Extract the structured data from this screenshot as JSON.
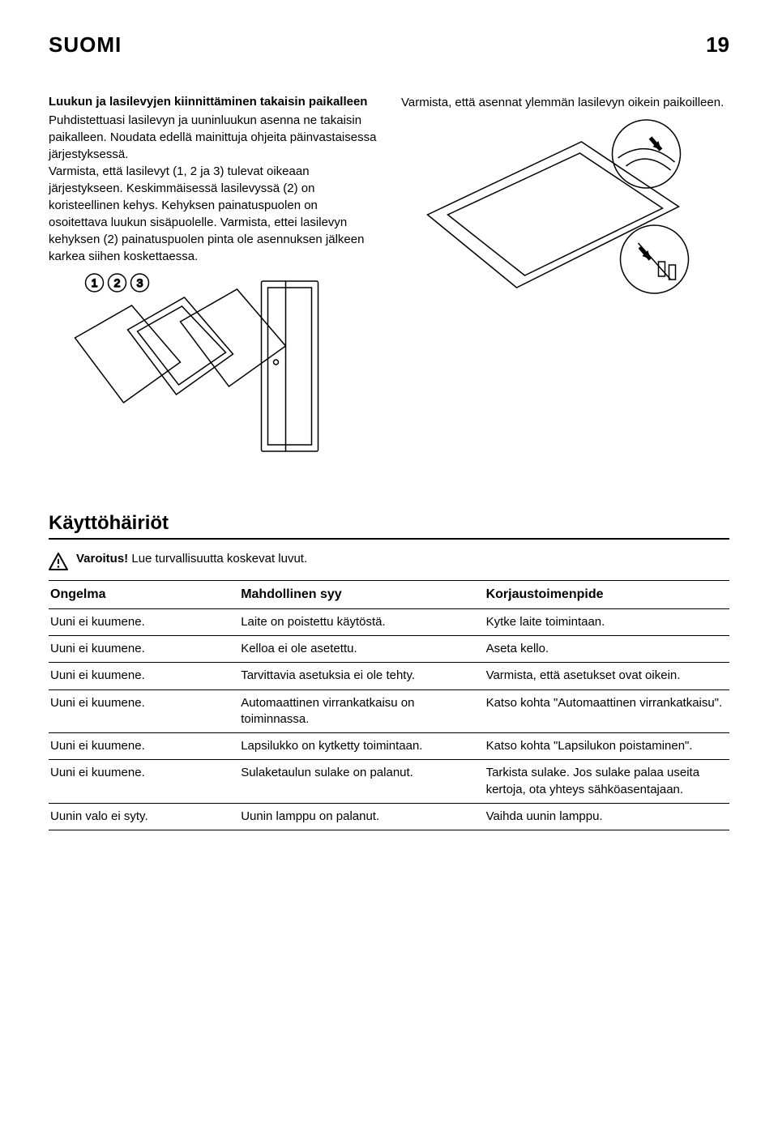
{
  "header": {
    "language": "SUOMI",
    "page_number": "19"
  },
  "left_column": {
    "subtitle": "Luukun ja lasilevyjen kiinnittäminen takaisin paikalleen",
    "body": "Puhdistettuasi lasilevyn ja uuninluukun asenna ne takaisin paikalleen. Noudata edellä mainittuja ohjeita päinvastaisessa järjestyksessä.\nVarmista, että lasilevyt (1, 2 ja 3) tulevat oikeaan järjestykseen. Keskimmäisessä lasilevyssä (2) on koristeellinen kehys. Kehyksen painatuspuolen on osoitettava luukun sisäpuolelle. Varmista, ettei lasilevyn kehyksen (2) painatuspuolen pinta ole asennuksen jälkeen karkea siihen koskettaessa.",
    "figure_labels": [
      "1",
      "2",
      "3"
    ]
  },
  "right_column": {
    "body": "Varmista, että asennat ylemmän lasilevyn oikein paikoilleen."
  },
  "troubleshooting": {
    "title": "Käyttöhäiriöt",
    "warning_bold": "Varoitus!",
    "warning_rest": " Lue turvallisuutta koskevat luvut.",
    "columns": [
      "Ongelma",
      "Mahdollinen syy",
      "Korjaustoimenpide"
    ],
    "rows": [
      [
        "Uuni ei kuumene.",
        "Laite on poistettu käytöstä.",
        "Kytke laite toimintaan."
      ],
      [
        "Uuni ei kuumene.",
        "Kelloa ei ole asetettu.",
        "Aseta kello."
      ],
      [
        "Uuni ei kuumene.",
        "Tarvittavia asetuksia ei ole tehty.",
        "Varmista, että asetukset ovat oikein."
      ],
      [
        "Uuni ei kuumene.",
        "Automaattinen virrankatkaisu on toiminnassa.",
        "Katso kohta \"Automaattinen virrankatkaisu\"."
      ],
      [
        "Uuni ei kuumene.",
        "Lapsilukko on kytketty toimintaan.",
        "Katso kohta \"Lapsilukon poistaminen\"."
      ],
      [
        "Uuni ei kuumene.",
        "Sulaketaulun sulake on palanut.",
        "Tarkista sulake. Jos sulake palaa useita kertoja, ota yhteys sähköasentajaan."
      ],
      [
        "Uunin valo ei syty.",
        "Uunin lamppu on palanut.",
        "Vaihda uunin lamppu."
      ]
    ]
  },
  "styling": {
    "page_bg": "#ffffff",
    "text_color": "#000000",
    "rule_color": "#000000",
    "body_fontsize_pt": 11,
    "heading_fontsize_pt": 18,
    "pagenum_fontsize_pt": 20,
    "table_col_widths_pct": [
      28,
      36,
      36
    ]
  }
}
